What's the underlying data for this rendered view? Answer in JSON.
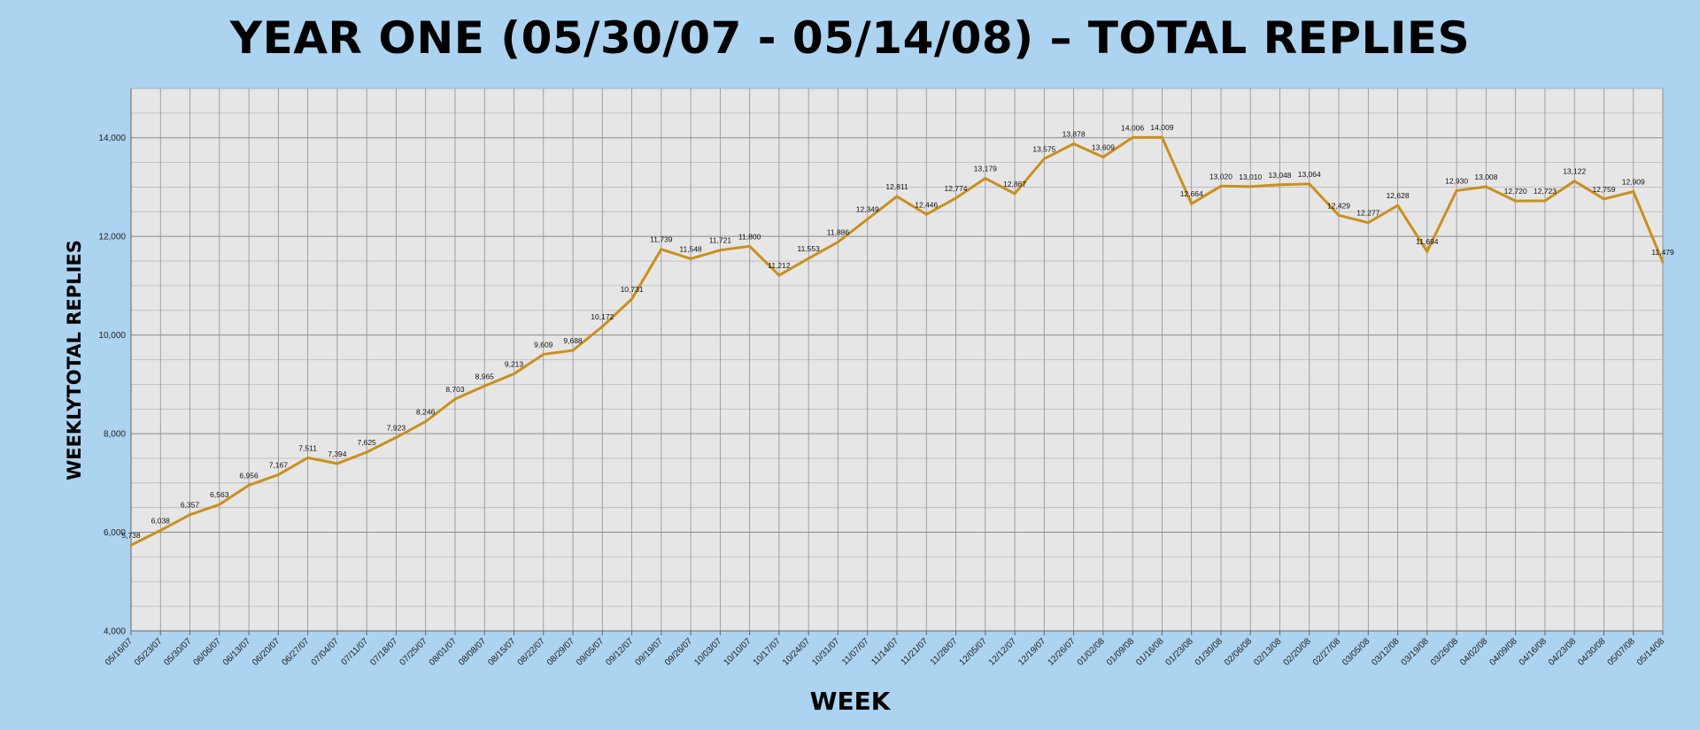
{
  "chart_data": {
    "type": "line",
    "title": "YEAR ONE (05/30/07 - 05/14/08) – TOTAL REPLIES",
    "xlabel": "WEEK",
    "ylabel": "WEEKLYTOTAL REPLIES",
    "ylim": [
      4000,
      15000
    ],
    "yticks": [
      4000,
      6000,
      8000,
      10000,
      12000,
      14000
    ],
    "ytick_labels": [
      "4,000",
      "6,000",
      "8,000",
      "10,000",
      "12,000",
      "14,000"
    ],
    "grid": true,
    "line_color": "#c8901e",
    "plot_background": "#e6e6e6",
    "categories": [
      "05/16/07",
      "05/23/07",
      "05/30/07",
      "06/06/07",
      "06/13/07",
      "06/20/07",
      "06/27/07",
      "07/04/07",
      "07/11/07",
      "07/18/07",
      "07/25/07",
      "08/01/07",
      "08/08/07",
      "08/15/07",
      "08/22/07",
      "08/29/07",
      "09/05/07",
      "09/12/07",
      "09/19/07",
      "09/26/07",
      "10/03/07",
      "10/10/07",
      "10/17/07",
      "10/24/07",
      "10/31/07",
      "11/07/07",
      "11/14/07",
      "11/21/07",
      "11/28/07",
      "12/05/07",
      "12/12/07",
      "12/19/07",
      "12/26/07",
      "01/02/08",
      "01/09/08",
      "01/16/08",
      "01/23/08",
      "01/30/08",
      "02/06/08",
      "02/13/08",
      "02/20/08",
      "02/27/08",
      "03/05/08",
      "03/12/08",
      "03/19/08",
      "03/26/08",
      "04/02/08",
      "04/09/08",
      "04/16/08",
      "04/23/08",
      "04/30/08",
      "05/07/08",
      "05/14/08"
    ],
    "values": [
      5738,
      6038,
      6357,
      6563,
      6956,
      7167,
      7511,
      7394,
      7625,
      7923,
      8246,
      8703,
      8965,
      9213,
      9609,
      9688,
      10172,
      10731,
      11739,
      11548,
      11721,
      11800,
      11212,
      11553,
      11886,
      12349,
      12811,
      12446,
      12774,
      13179,
      12867,
      13575,
      13878,
      13609,
      14006,
      14009,
      12664,
      13020,
      13010,
      13048,
      13064,
      12429,
      12277,
      12628,
      11694,
      12930,
      13008,
      12720,
      12723,
      13122,
      12759,
      12909,
      11479
    ],
    "data_labels": [
      "5,738",
      "6,038",
      "6,357",
      "6,563",
      "6,956",
      "7,167",
      "7,511",
      "7,394",
      "7,625",
      "7,923",
      "8,246",
      "8,703",
      "8,965",
      "9,213",
      "9,609",
      "9,688",
      "10,172",
      "10,731",
      "11,739",
      "11,548",
      "11,721",
      "11,800",
      "11,212",
      "11,553",
      "11,886",
      "12,349",
      "12,811",
      "12,446",
      "12,774",
      "13,179",
      "12,867",
      "13,575",
      "13,878",
      "13,609",
      "14,006",
      "14,009",
      "12,664",
      "13,020",
      "13,010",
      "13,048",
      "13,064",
      "12,429",
      "12,277",
      "12,628",
      "11,694",
      "12,930",
      "13,008",
      "12,720",
      "12,723",
      "13,122",
      "12,759",
      "12,909",
      "11,479"
    ]
  }
}
